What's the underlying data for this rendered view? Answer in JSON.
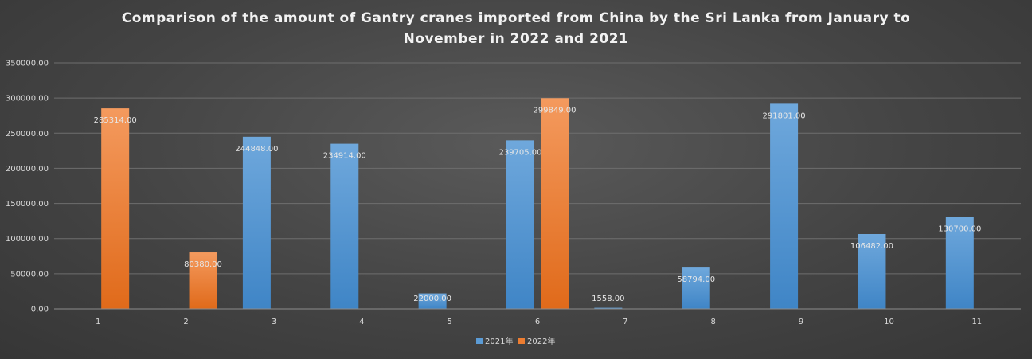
{
  "chart_data": {
    "type": "bar",
    "title": "Comparison of the amount of Gantry cranes imported from China by the Sri Lanka from January to November in 2022 and 2021",
    "xlabel": "",
    "ylabel": "",
    "categories": [
      "1",
      "2",
      "3",
      "4",
      "5",
      "6",
      "7",
      "8",
      "9",
      "10",
      "11"
    ],
    "series": [
      {
        "name": "2021年",
        "color": "#5b9bd5",
        "values": [
          null,
          null,
          244848.0,
          234914.0,
          22000.0,
          239705.0,
          1558.0,
          58794.0,
          291801.0,
          106482.0,
          130700.0
        ],
        "labels": [
          "",
          "",
          "244848.00",
          "234914.00",
          "22000.00",
          "239705.00",
          "1558.00",
          "58794.00",
          "291801.00",
          "106482.00",
          "130700.00"
        ]
      },
      {
        "name": "2022年",
        "color": "#ed7d31",
        "values": [
          285314.0,
          80380.0,
          null,
          null,
          null,
          299849.0,
          null,
          null,
          null,
          null,
          null
        ],
        "labels": [
          "285314.00",
          "80380.00",
          "",
          "",
          "",
          "299849.00",
          "",
          "",
          "",
          "",
          ""
        ]
      }
    ],
    "ylim": [
      0,
      350000
    ],
    "yticks": [
      "0.00",
      "50000.00",
      "100000.00",
      "150000.00",
      "200000.00",
      "250000.00",
      "300000.00",
      "350000.00"
    ],
    "grid": true,
    "legend_position": "bottom"
  }
}
